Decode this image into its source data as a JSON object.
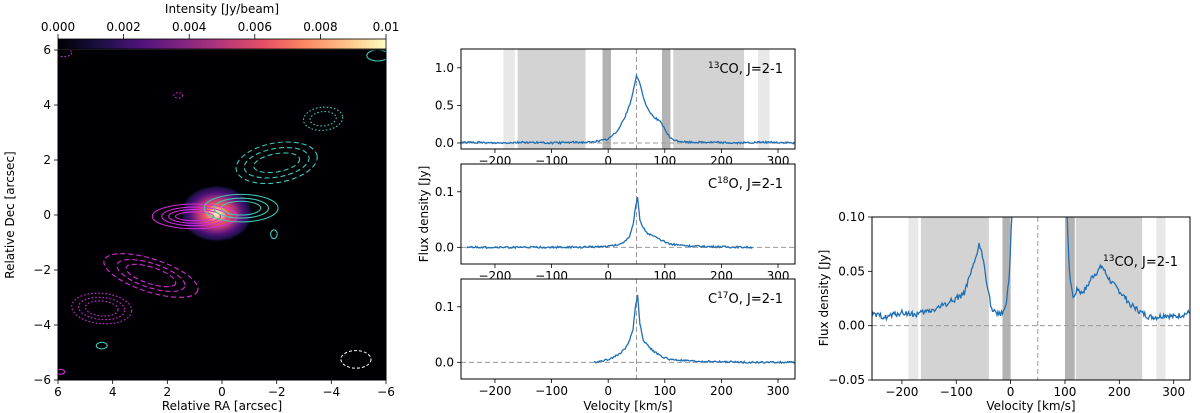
{
  "chart_data": [
    {
      "type": "heatmap",
      "colorbar": {
        "title": "Intensity [Jy/beam]",
        "ticks": [
          "0.000",
          "0.002",
          "0.004",
          "0.006",
          "0.008",
          "0.01"
        ],
        "range": [
          0,
          0.01
        ],
        "colormap": "magma"
      },
      "xlabel": "Relative RA [arcsec]",
      "ylabel": "Relative Dec [arcsec]",
      "xlim": [
        6,
        -6
      ],
      "ylim": [
        -6,
        6
      ],
      "xticks": [
        "6",
        "4",
        "2",
        "0",
        "−2",
        "−4",
        "−6"
      ],
      "yticks": [
        "6",
        "4",
        "2",
        "0",
        "−2",
        "−4",
        "−6"
      ],
      "colors": {
        "magenta_contours": "#d62ad6",
        "cyan_contours": "#3ec7b6",
        "beam": "#ffffff",
        "background": "#000004"
      },
      "blobs": [
        {
          "ra": 0.2,
          "dec": 0.05,
          "peak": 0.01,
          "sigma_ra": 0.45,
          "sigma_dec": 0.35
        }
      ],
      "contours": [
        {
          "color": "magenta",
          "style": "solid",
          "ra": 1.0,
          "dec": -0.05,
          "rx": [
            1.55,
            1.2,
            0.95,
            0.7
          ],
          "ry": [
            0.45,
            0.34,
            0.25,
            0.16
          ],
          "angle": 0
        },
        {
          "color": "cyan",
          "style": "solid",
          "ra": -0.7,
          "dec": 0.25,
          "rx": [
            1.35,
            1.0,
            0.72
          ],
          "ry": [
            0.5,
            0.36,
            0.25
          ],
          "angle": 0
        },
        {
          "color": "cyan",
          "style": "dashed",
          "ra": -2.0,
          "dec": 1.9,
          "rx": [
            1.5,
            1.2,
            0.85
          ],
          "ry": [
            0.72,
            0.52,
            0.33
          ],
          "angle": 10
        },
        {
          "color": "cyan",
          "style": "dotted",
          "ra": -3.7,
          "dec": 3.5,
          "rx": [
            0.72,
            0.48
          ],
          "ry": [
            0.42,
            0.26
          ],
          "angle": 5
        },
        {
          "color": "magenta",
          "style": "dashed",
          "ra": 2.6,
          "dec": -2.2,
          "rx": [
            1.8,
            1.3,
            0.95
          ],
          "ry": [
            0.6,
            0.44,
            0.3
          ],
          "angle": -18
        },
        {
          "color": "magenta",
          "style": "dotted",
          "ra": 4.4,
          "dec": -3.4,
          "rx": [
            1.1,
            0.85,
            0.6
          ],
          "ry": [
            0.55,
            0.4,
            0.27
          ],
          "angle": -5
        },
        {
          "color": "magenta",
          "style": "dotted",
          "ra": 5.8,
          "dec": 5.9,
          "rx": [
            0.3
          ],
          "ry": [
            0.14
          ],
          "angle": 0
        },
        {
          "color": "cyan",
          "style": "solid",
          "ra": -5.7,
          "dec": 5.8,
          "rx": [
            0.4
          ],
          "ry": [
            0.2
          ],
          "angle": 0
        },
        {
          "color": "magenta",
          "style": "dotted",
          "ra": 1.6,
          "dec": 4.35,
          "rx": [
            0.16
          ],
          "ry": [
            0.1
          ],
          "angle": 0
        },
        {
          "color": "cyan",
          "style": "solid",
          "ra": -1.9,
          "dec": -0.7,
          "rx": [
            0.12
          ],
          "ry": [
            0.16
          ],
          "angle": 0
        },
        {
          "color": "cyan",
          "style": "solid",
          "ra": 4.4,
          "dec": -4.75,
          "rx": [
            0.2
          ],
          "ry": [
            0.12
          ],
          "angle": 0
        },
        {
          "color": "magenta",
          "style": "solid",
          "ra": 5.9,
          "dec": -5.7,
          "rx": [
            0.14
          ],
          "ry": [
            0.09
          ],
          "angle": 0
        }
      ],
      "beam": {
        "ra": -4.9,
        "dec": -5.25,
        "rx": 0.55,
        "ry": 0.32
      }
    },
    {
      "type": "line",
      "annotation": "13CO, J=2-1",
      "xlim": [
        -260,
        330
      ],
      "ylim": [
        -0.08,
        1.25
      ],
      "yticks": [
        0.0,
        0.5,
        1.0
      ],
      "ytick_labels": [
        "0.0",
        "0.5",
        "1.0"
      ],
      "vline": 50,
      "shaded_light": [
        [
          -185,
          -165
        ],
        [
          265,
          285
        ]
      ],
      "shaded_mid": [
        [
          -160,
          -40
        ],
        [
          115,
          240
        ]
      ],
      "shaded_dark": [
        [
          -10,
          5
        ],
        [
          95,
          110
        ]
      ],
      "x": [
        -260,
        -200,
        -150,
        -100,
        -60,
        -30,
        0,
        15,
        30,
        40,
        45,
        50,
        55,
        62,
        70,
        80,
        90,
        95,
        100,
        105,
        110,
        120,
        140,
        180,
        230,
        280,
        330
      ],
      "y": [
        0.01,
        0.0,
        0.01,
        0.0,
        0.01,
        0.01,
        0.05,
        0.15,
        0.35,
        0.55,
        0.72,
        0.9,
        0.82,
        0.6,
        0.45,
        0.35,
        0.3,
        0.25,
        0.18,
        0.12,
        0.06,
        0.03,
        0.01,
        0.01,
        0.0,
        0.01,
        0.0
      ]
    },
    {
      "type": "line",
      "annotation": "C18O, J=2-1",
      "xlim": [
        -260,
        330
      ],
      "ylim": [
        -0.03,
        0.15
      ],
      "yticks": [
        0.0,
        0.1
      ],
      "ytick_labels": [
        "0.0",
        "0.1"
      ],
      "vline": 50,
      "x": [
        -250,
        -150,
        -50,
        0,
        20,
        30,
        38,
        44,
        48,
        52,
        56,
        62,
        70,
        80,
        95,
        110,
        150,
        200,
        255
      ],
      "y": [
        0.0,
        0.0,
        0.0,
        0.002,
        0.005,
        0.012,
        0.02,
        0.04,
        0.07,
        0.09,
        0.05,
        0.035,
        0.025,
        0.02,
        0.012,
        0.006,
        0.002,
        0.001,
        0.0
      ]
    },
    {
      "type": "line",
      "annotation": "C17O, J=2-1",
      "xlim": [
        -260,
        330
      ],
      "ylim": [
        -0.03,
        0.15
      ],
      "yticks": [
        0.0,
        0.1
      ],
      "ytick_labels": [
        "0.0",
        "0.1"
      ],
      "vline": 50,
      "x": [
        -25,
        0,
        20,
        30,
        38,
        44,
        48,
        52,
        56,
        62,
        70,
        80,
        95,
        110,
        150,
        200,
        250,
        330
      ],
      "y": [
        0.0,
        0.005,
        0.015,
        0.025,
        0.04,
        0.06,
        0.1,
        0.12,
        0.07,
        0.04,
        0.03,
        0.02,
        0.01,
        0.005,
        0.002,
        0.001,
        0.0,
        0.0
      ]
    },
    {
      "type": "line",
      "annotation": "13CO, J=2-1",
      "xlabel": "Velocity [km/s]",
      "ylabel": "Flux density [Jy]",
      "xlim": [
        -255,
        330
      ],
      "ylim": [
        -0.05,
        0.1
      ],
      "yticks": [
        -0.05,
        0.0,
        0.05,
        0.1
      ],
      "ytick_labels": [
        "−0.05",
        "0.00",
        "0.05",
        "0.10"
      ],
      "vline": 50,
      "shaded_light": [
        [
          -188,
          -170
        ],
        [
          268,
          285
        ]
      ],
      "shaded_mid": [
        [
          -165,
          -40
        ],
        [
          120,
          242
        ]
      ],
      "shaded_dark": [
        [
          -15,
          0
        ],
        [
          100,
          118
        ]
      ],
      "x": [
        -255,
        -230,
        -200,
        -175,
        -160,
        -140,
        -120,
        -100,
        -85,
        -75,
        -65,
        -58,
        -50,
        -42,
        -35,
        -25,
        -15,
        -8,
        -2,
        2,
        6,
        100,
        104,
        108,
        115,
        122,
        130,
        140,
        150,
        160,
        168,
        175,
        185,
        200,
        220,
        240,
        255,
        270,
        285,
        300,
        315,
        330
      ],
      "y": [
        0.01,
        0.008,
        0.012,
        0.01,
        0.012,
        0.015,
        0.02,
        0.025,
        0.03,
        0.045,
        0.06,
        0.075,
        0.06,
        0.035,
        0.015,
        0.01,
        0.012,
        0.02,
        0.05,
        0.1,
        0.13,
        0.13,
        0.1,
        0.05,
        0.025,
        0.035,
        0.03,
        0.035,
        0.045,
        0.05,
        0.055,
        0.048,
        0.04,
        0.032,
        0.02,
        0.012,
        0.008,
        0.008,
        0.01,
        0.008,
        0.01,
        0.012
      ]
    }
  ],
  "xticks_spectra": [
    "−200",
    "−100",
    "0",
    "100",
    "200",
    "300"
  ],
  "shared": {
    "xlabel": "Velocity [km/s]",
    "ylabel": "Flux density [Jy]"
  },
  "colors": {
    "line": "#1f6fb4",
    "shade_light": "#e8e8e8",
    "shade_mid": "#d3d3d3",
    "shade_dark": "#b3b3b3",
    "zero_line": "#9a9a9a"
  }
}
